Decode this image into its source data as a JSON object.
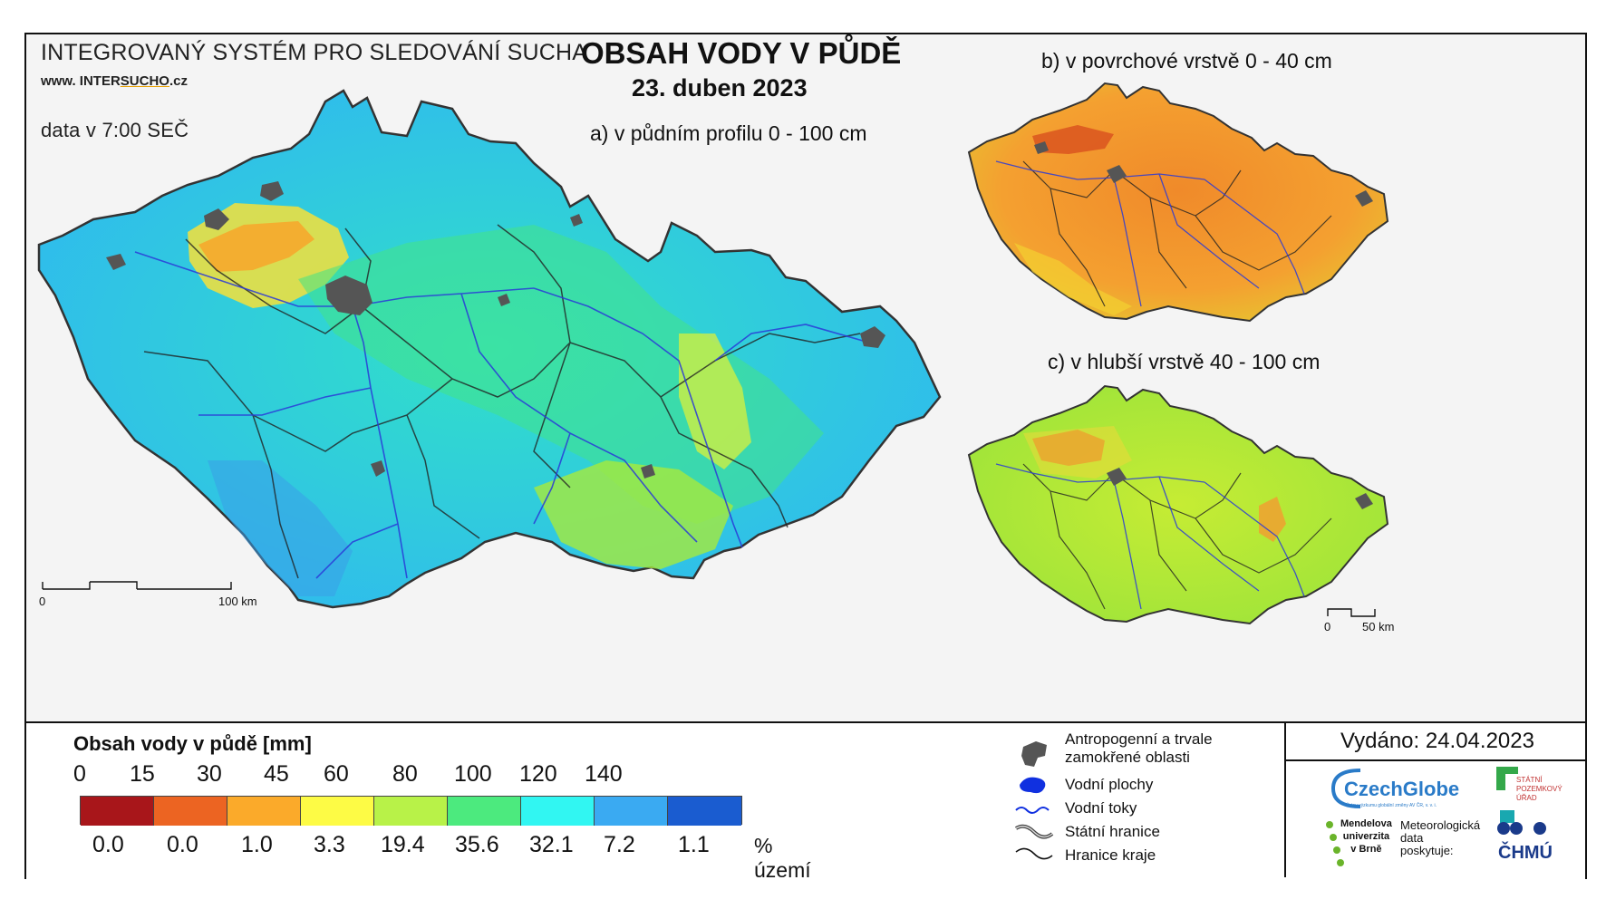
{
  "header": {
    "system_title": "INTEGROVANÝ SYSTÉM PRO SLEDOVÁNÍ SUCHA",
    "website_prefix": "www. INTER",
    "website_highlight": "SUCHO",
    "website_suffix": ".cz",
    "data_time": "data v 7:00 SEČ",
    "main_title": "OBSAH VODY V PŮDĚ",
    "date": "23. duben 2023"
  },
  "panels": {
    "a_label": "a) v půdním profilu 0 - 100 cm",
    "b_label": "b) v povrchové vrstvě 0 - 40 cm",
    "c_label": "c) v hlubší vrstvě 40 - 100 cm"
  },
  "scalebars": {
    "main_zero": "0",
    "main_end": "100 km",
    "small_zero": "0",
    "small_end": "50 km"
  },
  "legend": {
    "title": "Obsah vody v půdě  [mm]",
    "breaks": [
      "0",
      "15",
      "30",
      "45",
      "60",
      "80",
      "100",
      "120",
      "140"
    ],
    "colors": [
      "#a8161a",
      "#ec6422",
      "#fbaa2a",
      "#fdfb45",
      "#b8f248",
      "#4cea7e",
      "#31f6f2",
      "#3aaaf2",
      "#1a5cd0"
    ],
    "percent_values": [
      "0.0",
      "0.0",
      "1.0",
      "3.3",
      "19.4",
      "35.6",
      "32.1",
      "7.2",
      "1.1"
    ],
    "percent_label": "% území"
  },
  "symbols": {
    "anthropogenic": "Antropogenní a trvale zamokřené oblasti",
    "water_bodies": "Vodní plochy",
    "rivers": "Vodní toky",
    "state_border": "Státní hranice",
    "region_border": "Hranice kraje"
  },
  "issued": "Vydáno: 24.04.2023",
  "logos": {
    "czechglobe": "CzechGlobe",
    "czechglobe_tagline": "Ústav výzkumu globální změny AV ČR, v. v. i.",
    "spu_line1": "STÁTNÍ",
    "spu_line2": "POZEMKOVÝ",
    "spu_line3": "ÚŘAD",
    "mendel_line1": "Mendelova",
    "mendel_line2": "univerzita",
    "mendel_line3": "v Brně",
    "meteo_line1": "Meteorologická",
    "meteo_line2": "data",
    "meteo_line3": "poskytuje:",
    "chmu": "ČHMÚ"
  }
}
